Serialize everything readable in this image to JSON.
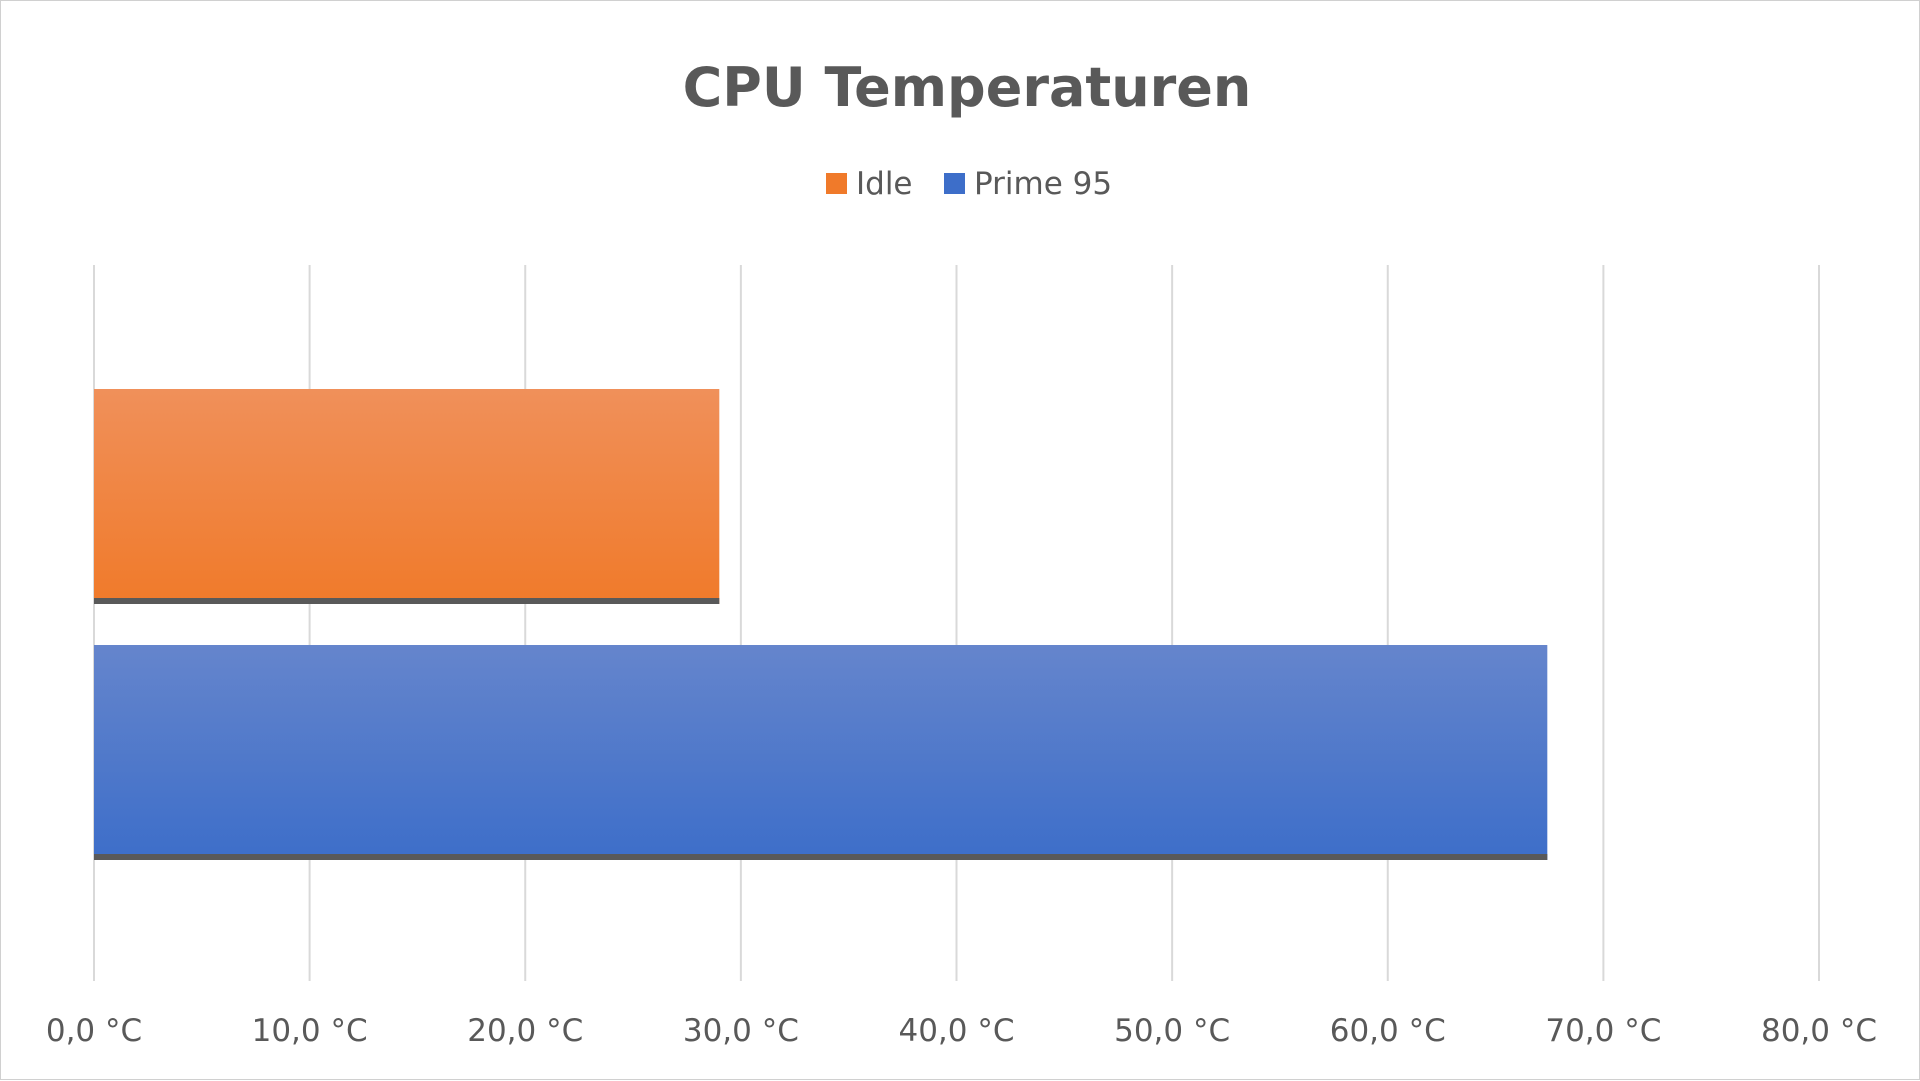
{
  "chart_data": {
    "type": "bar",
    "orientation": "horizontal",
    "title": "CPU Temperaturen",
    "xlabel": "",
    "ylabel": "",
    "xlim": [
      0,
      80
    ],
    "tick_values": [
      0,
      10,
      20,
      30,
      40,
      50,
      60,
      70,
      80
    ],
    "tick_labels": [
      "0,0 °C",
      "10,0 °C",
      "20,0 °C",
      "30,0 °C",
      "40,0 °C",
      "50,0 °C",
      "60,0 °C",
      "70,0 °C",
      "80,0 °C"
    ],
    "grid": true,
    "legend_position": "top-center",
    "series": [
      {
        "name": "Idle",
        "values": [
          29.0
        ],
        "color": "#f07a2a",
        "color_light": "#f0905a"
      },
      {
        "name": "Prime 95",
        "values": [
          67.4
        ],
        "color": "#3d6ec9",
        "color_light": "#6585cc"
      }
    ]
  }
}
